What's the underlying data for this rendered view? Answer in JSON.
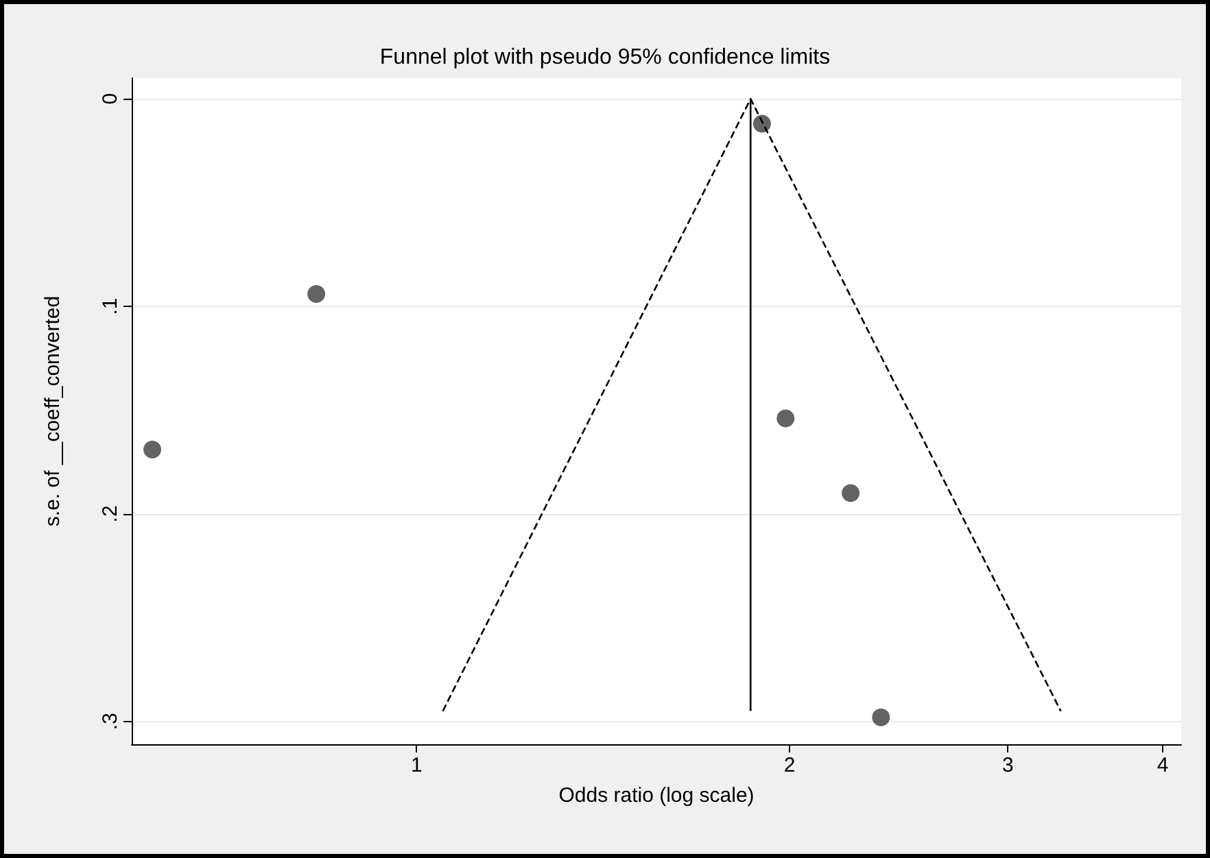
{
  "chart_data": {
    "type": "scatter",
    "title": "Funnel plot with pseudo 95% confidence limits",
    "xlabel": "Odds ratio (log scale)",
    "ylabel": "s.e. of __coeff_converted",
    "log": "x",
    "xlim": [
      0.589,
      4.14
    ],
    "xticks": [
      1,
      2,
      3,
      4
    ],
    "ylim": [
      0.311,
      -0.01
    ],
    "yticks": [
      {
        "value": 0,
        "label": "0"
      },
      {
        "value": 0.1,
        "label": ".1"
      },
      {
        "value": 0.2,
        "label": ".2"
      },
      {
        "value": 0.3,
        "label": ".3"
      }
    ],
    "grid": "y",
    "series": [
      {
        "marker": "circle",
        "color": "#3c3c3c",
        "x": [
          1.9,
          0.83,
          0.612,
          1.985,
          2.24,
          2.37
        ],
        "values": [
          0.012,
          0.094,
          0.169,
          0.154,
          0.19,
          0.298
        ]
      },
      {
        "type": "line",
        "marker": "none",
        "line_style": "dashed",
        "color": "#000000",
        "x": [
          1.05,
          1.86,
          3.31
        ],
        "values": [
          0.295,
          0,
          0.295
        ]
      },
      {
        "type": "line",
        "marker": "none",
        "line_style": "solid",
        "color": "#000000",
        "x": [
          1.86,
          1.86
        ],
        "values": [
          0,
          0.295
        ]
      }
    ]
  }
}
